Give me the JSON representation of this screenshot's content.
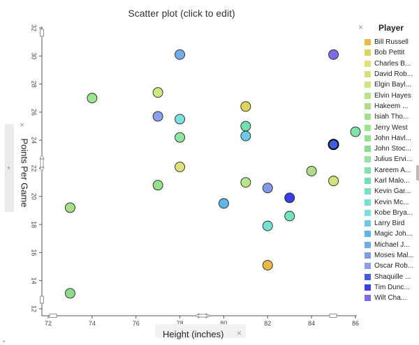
{
  "chart_data": {
    "type": "scatter",
    "title": "Scatter plot (click to edit)",
    "xlabel": "Height (inches)",
    "ylabel": "Points Per Game",
    "xlim": [
      72,
      86
    ],
    "ylim": [
      12,
      32
    ],
    "xticks": [
      72,
      74,
      76,
      78,
      80,
      82,
      84,
      86
    ],
    "yticks": [
      12,
      14,
      16,
      18,
      20,
      22,
      24,
      26,
      28,
      30,
      32
    ],
    "grid": false,
    "legend_title": "Player",
    "legend_position": "right",
    "series": [
      {
        "name": "Bill Russell",
        "color": "#e9b949",
        "x": 82,
        "y": 15.1
      },
      {
        "name": "Bob Pettit",
        "color": "#dcd45d",
        "x": 81,
        "y": 26.4
      },
      {
        "name": "Charles B...",
        "color": "#e0e07a",
        "x": 78,
        "y": 22.1
      },
      {
        "name": "David Rob...",
        "color": "#d4e07a",
        "x": 85,
        "y": 21.1
      },
      {
        "name": "Elgin Bayl...",
        "color": "#cce680",
        "x": 77,
        "y": 27.4
      },
      {
        "name": "Elvin Hayes",
        "color": "#b6e685",
        "x": 81,
        "y": 21.0
      },
      {
        "name": "Hakeem ...",
        "color": "#aedc88",
        "x": 84,
        "y": 21.8
      },
      {
        "name": "Isiah Tho...",
        "color": "#a4e08a",
        "x": 73,
        "y": 19.2
      },
      {
        "name": "Jerry West",
        "color": "#9ce690",
        "x": 74,
        "y": 27.0
      },
      {
        "name": "John Havl...",
        "color": "#93e08e",
        "x": 77,
        "y": 20.8
      },
      {
        "name": "John Stoc...",
        "color": "#8ddc8e",
        "x": 73,
        "y": 13.1
      },
      {
        "name": "Julius Ervi...",
        "color": "#90e6a0",
        "x": 78,
        "y": 24.2
      },
      {
        "name": "Kareem A...",
        "color": "#7fe2a6",
        "x": 86,
        "y": 24.6
      },
      {
        "name": "Karl Malo...",
        "color": "#6fe0b0",
        "x": 81,
        "y": 25.0
      },
      {
        "name": "Kevin Gar...",
        "color": "#74e2c0",
        "x": 83,
        "y": 18.6
      },
      {
        "name": "Kevin Mc...",
        "color": "#71e2d3",
        "x": 82,
        "y": 17.9
      },
      {
        "name": "Kobe Brya...",
        "color": "#7ae0e0",
        "x": 78,
        "y": 25.5
      },
      {
        "name": "Larry Bird",
        "color": "#6ec8e6",
        "x": 81,
        "y": 24.3
      },
      {
        "name": "Magic Joh...",
        "color": "#5eb6e6",
        "x": 80,
        "y": 19.5
      },
      {
        "name": "Michael J...",
        "color": "#70aeea",
        "x": 78,
        "y": 30.1
      },
      {
        "name": "Moses Mal...",
        "color": "#7f9ae6",
        "x": 82,
        "y": 20.6
      },
      {
        "name": "Oscar Rob...",
        "color": "#8aa0ea",
        "x": 77,
        "y": 25.7
      },
      {
        "name": "Shaquille ...",
        "color": "#3f5ee0",
        "x": 85,
        "y": 23.7
      },
      {
        "name": "Tim Dunc...",
        "color": "#3a3ee6",
        "x": 83,
        "y": 19.9
      },
      {
        "name": "Wilt Cha...",
        "color": "#7d6ce6",
        "x": 85,
        "y": 30.1
      }
    ],
    "selected_series": "Shaquille ..."
  },
  "icons": {
    "close": "×",
    "add": "+"
  }
}
